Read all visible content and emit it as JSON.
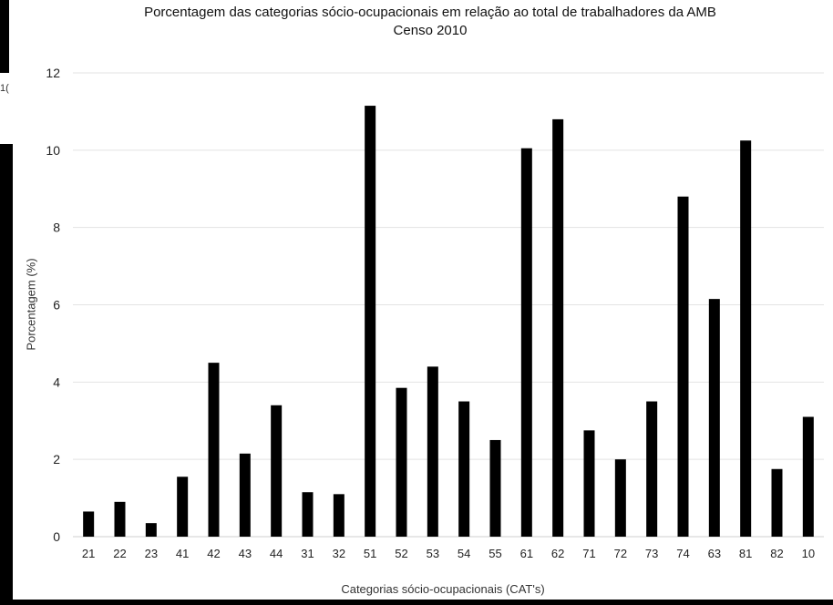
{
  "edge_fragment": "1(",
  "chart_data": {
    "type": "bar",
    "title": "Porcentagem das categorias sócio-ocupacionais em relação ao total de trabalhadores da AMB",
    "subtitle": "Censo 2010",
    "xlabel": "Categorias sócio-ocupacionais (CAT's)",
    "ylabel": "Porcentagem (%)",
    "ylim": [
      0,
      12
    ],
    "yticks": [
      0,
      2,
      4,
      6,
      8,
      10,
      12
    ],
    "grid": true,
    "legend": "none",
    "bar_color": "#000000",
    "categories": [
      "21",
      "22",
      "23",
      "41",
      "42",
      "43",
      "44",
      "31",
      "32",
      "51",
      "52",
      "53",
      "54",
      "55",
      "61",
      "62",
      "71",
      "72",
      "73",
      "74",
      "63",
      "81",
      "82",
      "10"
    ],
    "values": [
      0.65,
      0.9,
      0.35,
      1.55,
      4.5,
      2.15,
      3.4,
      1.15,
      1.1,
      11.15,
      3.85,
      4.4,
      3.5,
      2.5,
      10.05,
      10.8,
      2.75,
      2.0,
      3.5,
      8.8,
      6.15,
      10.25,
      1.75,
      3.1
    ]
  }
}
